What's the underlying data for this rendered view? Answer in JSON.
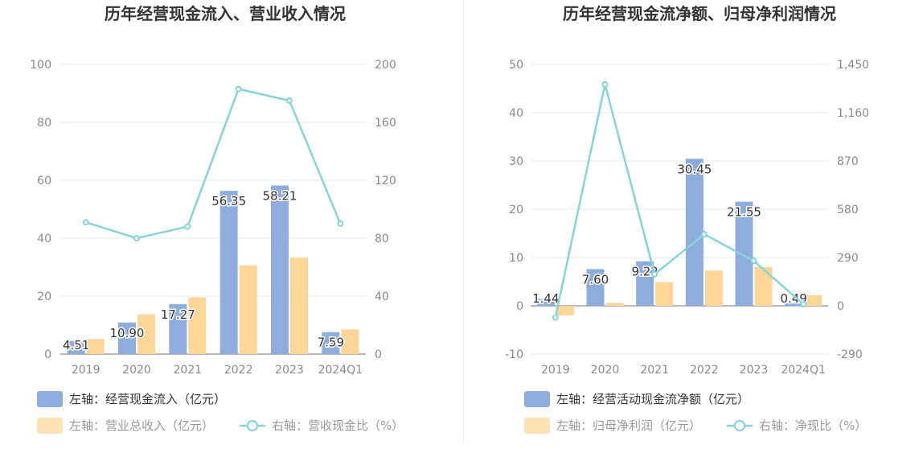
{
  "chart_data": [
    {
      "type": "bar+line",
      "title": "历年经营现金流入、营业收入情况",
      "categories": [
        "2019",
        "2020",
        "2021",
        "2022",
        "2023",
        "2024Q1"
      ],
      "left_axis": {
        "min": 0,
        "max": 100,
        "ticks": [
          "0",
          "20",
          "40",
          "60",
          "80",
          "100"
        ]
      },
      "right_axis": {
        "min": 0,
        "max": 200,
        "ticks": [
          "0",
          "40",
          "80",
          "120",
          "160",
          "200"
        ]
      },
      "bars": [
        {
          "name": "左轴：经营现金流入（亿元）",
          "color": "#8eaddc",
          "values": [
            4.51,
            10.9,
            17.27,
            56.35,
            58.21,
            7.59
          ],
          "labels": [
            "4.51",
            "10.90",
            "17.27",
            "56.35",
            "58.21",
            "7.59"
          ]
        },
        {
          "name": "左轴：营业总收入（亿元）",
          "color": "#ffd697",
          "values": [
            5.2,
            13.7,
            19.6,
            30.6,
            33.3,
            8.5
          ]
        }
      ],
      "line": {
        "name": "右轴：营收现金比（%）",
        "color": "#86d4d8",
        "values": [
          91,
          80,
          88,
          183,
          175,
          90
        ]
      },
      "grid": true,
      "legend": "bottom-left"
    },
    {
      "type": "bar+line",
      "title": "历年经营现金流净额、归母净利润情况",
      "categories": [
        "2019",
        "2020",
        "2021",
        "2022",
        "2023",
        "2024Q1"
      ],
      "left_axis": {
        "min": -10,
        "max": 50,
        "ticks": [
          "-10",
          "0",
          "10",
          "20",
          "30",
          "40",
          "50"
        ]
      },
      "right_axis": {
        "min": -290,
        "max": 1450,
        "ticks": [
          "-290",
          "0",
          "290",
          "580",
          "870",
          "1,160",
          "1,450"
        ]
      },
      "bars": [
        {
          "name": "左轴：经营活动现金流净额（亿元）",
          "color": "#8eaddc",
          "values": [
            1.44,
            7.6,
            9.22,
            30.45,
            21.55,
            0.49
          ],
          "labels": [
            "1.44",
            "7.60",
            "9.22",
            "30.45",
            "21.55",
            "0.49"
          ]
        },
        {
          "name": "左轴：归母净利润（亿元）",
          "color": "#ffd697",
          "values": [
            -2.0,
            0.6,
            4.9,
            7.3,
            8.0,
            2.2
          ]
        }
      ],
      "line": {
        "name": "右轴：净现比（%）",
        "color": "#86d4d8",
        "values": [
          -70,
          1330,
          190,
          430,
          270,
          10
        ]
      },
      "grid": true,
      "legend": "bottom-left"
    }
  ]
}
